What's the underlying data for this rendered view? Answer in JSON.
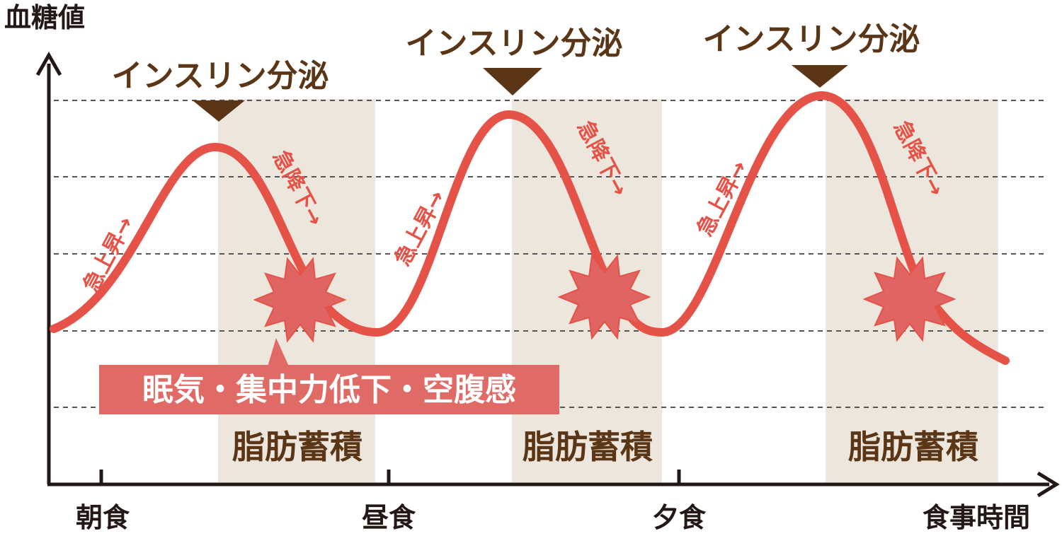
{
  "y_axis_label": "血糖値",
  "x_axis": {
    "ticks": [
      "朝食",
      "昼食",
      "夕食"
    ],
    "end_label": "食事時間"
  },
  "insulin_label": "インスリン分泌",
  "rise_label": "急上昇→",
  "fall_label": "急降下→",
  "fat_label": "脂肪蓄積",
  "symptom_label": "眠気・集中力低下・空腹感",
  "colors": {
    "curve": "#e55348",
    "burst": "#df6462",
    "callout": "#e06a66",
    "band": "#ede6dc",
    "marker": "#5a3516",
    "text_brown": "#5a3516",
    "axis": "#231815",
    "gridline": "#555555"
  },
  "icons": [
    "up-arrow-icon",
    "right-arrow-icon",
    "down-triangle-icon",
    "starburst-icon"
  ]
}
